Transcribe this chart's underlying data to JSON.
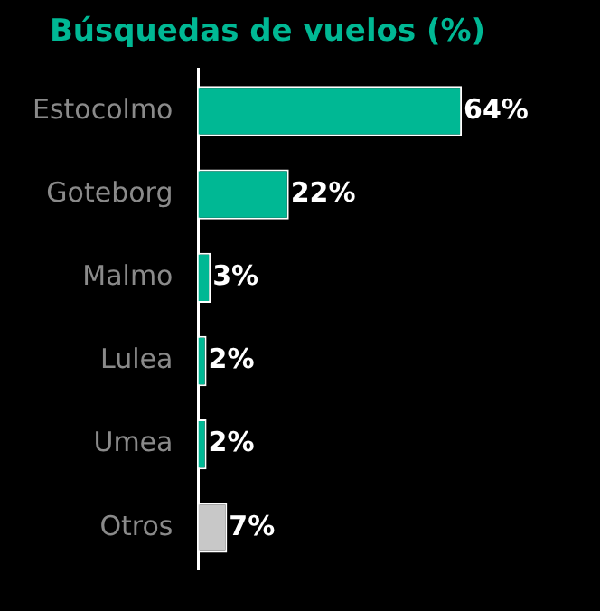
{
  "chart_data": {
    "type": "bar",
    "orientation": "horizontal",
    "title": "Búsquedas de vuelos (%)",
    "categories": [
      "Estocolmo",
      "Goteborg",
      "Malmo",
      "Lulea",
      "Umea",
      "Otros"
    ],
    "values": [
      64,
      22,
      3,
      2,
      2,
      7
    ],
    "colors": [
      "#00b894",
      "#00b894",
      "#00b894",
      "#00b894",
      "#00b894",
      "#c8c8c8"
    ],
    "value_labels": [
      "64%",
      "22%",
      "3%",
      "2%",
      "2%",
      "7%"
    ]
  }
}
